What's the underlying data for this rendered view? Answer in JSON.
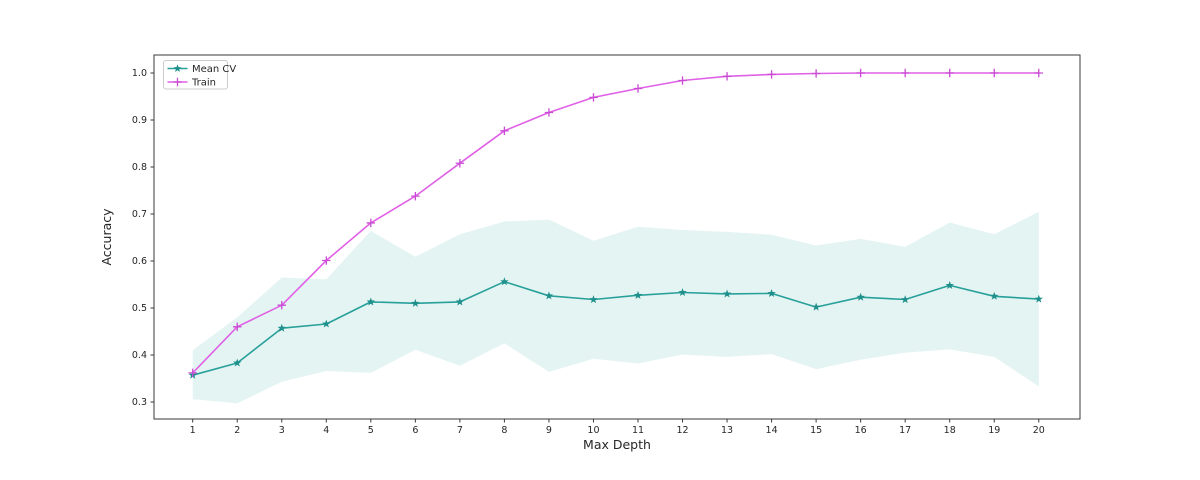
{
  "figure": {
    "background": "#ffffff",
    "spine_color": "#3a3a3a",
    "text_color": "#262626"
  },
  "legend": {
    "position": "upper-left",
    "entries": [
      {
        "label": "Mean CV",
        "color": "#27A09A",
        "marker_color": "#1E8F8A",
        "marker": "star"
      },
      {
        "label": "Train",
        "color": "#E061E6",
        "marker_color": "#C94AD4",
        "marker": "plus"
      }
    ]
  },
  "chart_data": {
    "type": "line",
    "title": "",
    "xlabel": "Max Depth",
    "ylabel": "Accuracy",
    "x": [
      1,
      2,
      3,
      4,
      5,
      6,
      7,
      8,
      9,
      10,
      11,
      12,
      13,
      14,
      15,
      16,
      17,
      18,
      19,
      20
    ],
    "xticks": [
      "1",
      "2",
      "3",
      "4",
      "5",
      "6",
      "7",
      "8",
      "9",
      "10",
      "11",
      "12",
      "13",
      "14",
      "15",
      "16",
      "17",
      "18",
      "19",
      "20"
    ],
    "ytick_values": [
      0.3,
      0.4,
      0.5,
      0.6,
      0.7,
      0.8,
      0.9,
      1.0
    ],
    "yticks": [
      "0.3",
      "0.4",
      "0.5",
      "0.6",
      "0.7",
      "0.8",
      "0.9",
      "1.0"
    ],
    "xlim": [
      0.13,
      20.93
    ],
    "ylim": [
      0.264,
      1.038
    ],
    "grid": false,
    "legend_position": "upper left",
    "series": [
      {
        "name": "Mean CV",
        "color": "#27A09A",
        "marker": "star",
        "marker_color": "#1E8F8A",
        "values": [
          0.357,
          0.383,
          0.457,
          0.466,
          0.513,
          0.51,
          0.513,
          0.556,
          0.526,
          0.518,
          0.527,
          0.533,
          0.53,
          0.531,
          0.502,
          0.523,
          0.518,
          0.548,
          0.525,
          0.519
        ]
      },
      {
        "name": "Train",
        "color": "#E061E6",
        "marker": "plus",
        "marker_color": "#C94AD4",
        "values": [
          0.362,
          0.46,
          0.506,
          0.601,
          0.681,
          0.738,
          0.808,
          0.877,
          0.916,
          0.948,
          0.967,
          0.984,
          0.993,
          0.997,
          0.999,
          1.0,
          1.0,
          1.0,
          1.0,
          1.0
        ]
      }
    ],
    "band": {
      "series": "Mean CV",
      "color": "#23A39D",
      "opacity": 0.12,
      "upper": [
        0.41,
        0.48,
        0.565,
        0.561,
        0.664,
        0.609,
        0.657,
        0.684,
        0.688,
        0.643,
        0.673,
        0.666,
        0.662,
        0.656,
        0.633,
        0.647,
        0.63,
        0.682,
        0.657,
        0.705
      ],
      "lower": [
        0.306,
        0.297,
        0.343,
        0.366,
        0.362,
        0.411,
        0.377,
        0.425,
        0.364,
        0.392,
        0.382,
        0.401,
        0.396,
        0.402,
        0.37,
        0.39,
        0.405,
        0.412,
        0.396,
        0.333
      ]
    }
  }
}
